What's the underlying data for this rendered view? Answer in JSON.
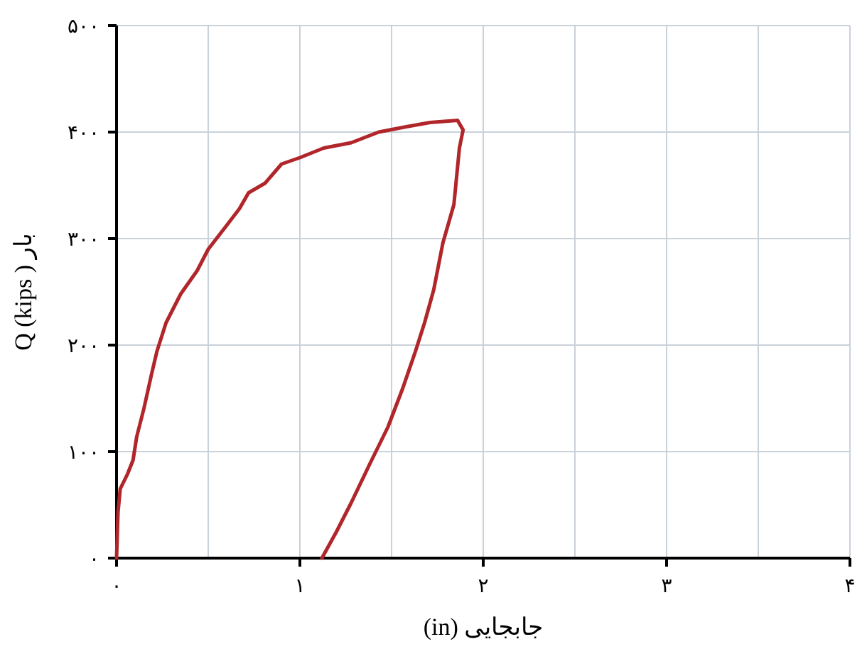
{
  "chart_data": {
    "type": "line",
    "xlabel": "(in) جابجایی",
    "ylabel": "Q (kips ) بار",
    "xlim": [
      0,
      4
    ],
    "ylim": [
      0,
      500
    ],
    "xticks": [
      {
        "value": 0,
        "label": "۰"
      },
      {
        "value": 0.5,
        "label": null
      },
      {
        "value": 1,
        "label": "۱"
      },
      {
        "value": 1.5,
        "label": null
      },
      {
        "value": 2,
        "label": "۲"
      },
      {
        "value": 2.5,
        "label": null
      },
      {
        "value": 3,
        "label": "۳"
      },
      {
        "value": 3.5,
        "label": null
      },
      {
        "value": 4,
        "label": "۴"
      }
    ],
    "yticks": [
      {
        "value": 0,
        "label": "۰"
      },
      {
        "value": 100,
        "label": "۱۰۰"
      },
      {
        "value": 200,
        "label": "۲۰۰"
      },
      {
        "value": 300,
        "label": "۳۰۰"
      },
      {
        "value": 400,
        "label": "۴۰۰"
      },
      {
        "value": 500,
        "label": "۵۰۰"
      }
    ],
    "grid": true,
    "series": [
      {
        "color": "#b0262a",
        "x": [
          0,
          0.008,
          0.02,
          0.06,
          0.09,
          0.11,
          0.15,
          0.19,
          0.22,
          0.27,
          0.35,
          0.44,
          0.5,
          0.59,
          0.67,
          0.72,
          0.81,
          0.9,
          1.0,
          1.13,
          1.28,
          1.43,
          1.58,
          1.71,
          1.86,
          1.89,
          1.87,
          1.84,
          1.78,
          1.73,
          1.68,
          1.63,
          1.56,
          1.48,
          1.38,
          1.28,
          1.2,
          1.12
        ],
        "values": [
          0,
          43,
          65,
          79,
          92,
          114,
          141,
          172,
          194,
          221,
          248,
          270,
          290,
          310,
          328,
          343,
          352,
          370,
          376,
          385,
          390,
          400,
          405,
          409,
          411,
          402,
          385,
          332,
          296,
          252,
          221,
          194,
          159,
          123,
          88,
          52,
          25,
          0
        ]
      }
    ]
  }
}
